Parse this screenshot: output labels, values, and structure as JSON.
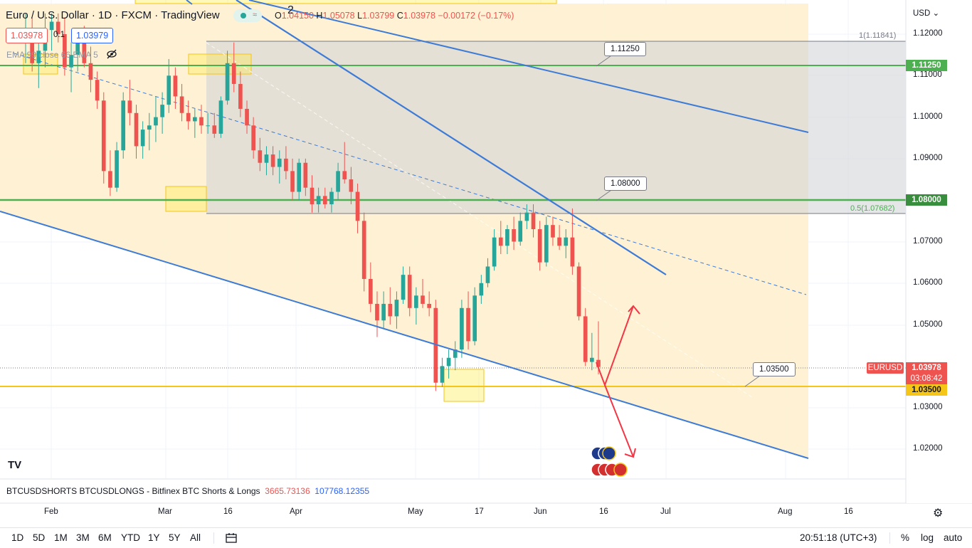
{
  "header": {
    "title": "Euro / U.S. Dollar · 1D · FXCM · TradingView",
    "marker": "2",
    "ohlc": {
      "o_label": "O",
      "o": "1.04150",
      "h_label": "H",
      "h": "1.05078",
      "l_label": "L",
      "l": "1.03799",
      "c_label": "C",
      "c": "1.03978",
      "change": "−0.00172 (−0.17%)"
    },
    "sell_price": "1.03978",
    "spread": "0.1",
    "buy_price": "1.03979",
    "indicator": "EMA 99 close 66 EMA 5"
  },
  "price_axis": {
    "currency": "USD",
    "ticks": [
      "1.12000",
      "1.11000",
      "1.10000",
      "1.09000",
      "1.07000",
      "1.06000",
      "1.05000",
      "1.03000",
      "1.02000"
    ],
    "tags": {
      "level_1": "1.11250",
      "level_2": "1.08000",
      "symbol": "EURUSD",
      "last": "1.03978",
      "countdown": "03:08:42",
      "level_3": "1.03500"
    },
    "fib_top": "1(1.11841)",
    "fib_mid": "0.5(1.07682)"
  },
  "annotations": [
    "1.11250",
    "1.08000",
    "1.03500"
  ],
  "time_axis": [
    "Feb",
    "Mar",
    "16",
    "Apr",
    "May",
    "17",
    "Jun",
    "16",
    "Jul",
    "Aug",
    "16"
  ],
  "indicator_pane": {
    "name": "BTCUSDSHORTS BTCUSDLONGS - Bitfinex BTC Shorts & Longs",
    "value_1": "3665.73136",
    "value_2": "107768.12355"
  },
  "toolbar": {
    "ranges": [
      "1D",
      "5D",
      "1M",
      "3M",
      "6M",
      "YTD",
      "1Y",
      "5Y",
      "All"
    ],
    "time": "20:51:18 (UTC+3)",
    "pct": "%",
    "log": "log",
    "auto": "auto"
  },
  "colors": {
    "up": "#26a69a",
    "down": "#ef5350",
    "channel_fill": "#fff0cc",
    "box_fill": "#dcdde0",
    "green_line": "#4caf50",
    "orange_line": "#f5c518",
    "trend_blue": "#3d7bd6",
    "arrow_red": "#f23645"
  },
  "chart_data": {
    "type": "candlestick",
    "symbol": "EURUSD",
    "timeframe": "1D",
    "ylim": [
      1.013,
      1.125
    ],
    "horizontal_levels": [
      1.1125,
      1.08,
      1.035
    ],
    "candles": [
      {
        "o": 1.118,
        "h": 1.125,
        "l": 1.113,
        "c": 1.121
      },
      {
        "o": 1.12,
        "h": 1.124,
        "l": 1.111,
        "c": 1.113
      },
      {
        "o": 1.113,
        "h": 1.118,
        "l": 1.107,
        "c": 1.116
      },
      {
        "o": 1.116,
        "h": 1.125,
        "l": 1.112,
        "c": 1.121
      },
      {
        "o": 1.121,
        "h": 1.125,
        "l": 1.116,
        "c": 1.123
      },
      {
        "o": 1.123,
        "h": 1.125,
        "l": 1.118,
        "c": 1.12
      },
      {
        "o": 1.12,
        "h": 1.124,
        "l": 1.11,
        "c": 1.112
      },
      {
        "o": 1.112,
        "h": 1.118,
        "l": 1.106,
        "c": 1.115
      },
      {
        "o": 1.115,
        "h": 1.121,
        "l": 1.111,
        "c": 1.118
      },
      {
        "o": 1.118,
        "h": 1.122,
        "l": 1.112,
        "c": 1.113
      },
      {
        "o": 1.113,
        "h": 1.117,
        "l": 1.106,
        "c": 1.109
      },
      {
        "o": 1.109,
        "h": 1.111,
        "l": 1.102,
        "c": 1.104
      },
      {
        "o": 1.104,
        "h": 1.106,
        "l": 1.084,
        "c": 1.087
      },
      {
        "o": 1.087,
        "h": 1.092,
        "l": 1.081,
        "c": 1.083
      },
      {
        "o": 1.083,
        "h": 1.094,
        "l": 1.082,
        "c": 1.092
      },
      {
        "o": 1.092,
        "h": 1.106,
        "l": 1.09,
        "c": 1.104
      },
      {
        "o": 1.104,
        "h": 1.109,
        "l": 1.098,
        "c": 1.101
      },
      {
        "o": 1.101,
        "h": 1.103,
        "l": 1.09,
        "c": 1.093
      },
      {
        "o": 1.093,
        "h": 1.099,
        "l": 1.09,
        "c": 1.097
      },
      {
        "o": 1.097,
        "h": 1.101,
        "l": 1.092,
        "c": 1.098
      },
      {
        "o": 1.098,
        "h": 1.105,
        "l": 1.094,
        "c": 1.1
      },
      {
        "o": 1.1,
        "h": 1.106,
        "l": 1.096,
        "c": 1.103
      },
      {
        "o": 1.103,
        "h": 1.114,
        "l": 1.101,
        "c": 1.11
      },
      {
        "o": 1.11,
        "h": 1.112,
        "l": 1.102,
        "c": 1.105
      },
      {
        "o": 1.105,
        "h": 1.108,
        "l": 1.099,
        "c": 1.101
      },
      {
        "o": 1.101,
        "h": 1.104,
        "l": 1.097,
        "c": 1.099
      },
      {
        "o": 1.099,
        "h": 1.102,
        "l": 1.095,
        "c": 1.1
      },
      {
        "o": 1.1,
        "h": 1.103,
        "l": 1.096,
        "c": 1.098
      },
      {
        "o": 1.098,
        "h": 1.101,
        "l": 1.096,
        "c": 1.098
      },
      {
        "o": 1.098,
        "h": 1.101,
        "l": 1.095,
        "c": 1.096
      },
      {
        "o": 1.096,
        "h": 1.105,
        "l": 1.095,
        "c": 1.104
      },
      {
        "o": 1.104,
        "h": 1.116,
        "l": 1.103,
        "c": 1.113
      },
      {
        "o": 1.113,
        "h": 1.118,
        "l": 1.106,
        "c": 1.108
      },
      {
        "o": 1.108,
        "h": 1.111,
        "l": 1.1,
        "c": 1.102
      },
      {
        "o": 1.102,
        "h": 1.104,
        "l": 1.096,
        "c": 1.098
      },
      {
        "o": 1.098,
        "h": 1.1,
        "l": 1.09,
        "c": 1.092
      },
      {
        "o": 1.092,
        "h": 1.095,
        "l": 1.087,
        "c": 1.089
      },
      {
        "o": 1.089,
        "h": 1.093,
        "l": 1.086,
        "c": 1.091
      },
      {
        "o": 1.091,
        "h": 1.093,
        "l": 1.086,
        "c": 1.088
      },
      {
        "o": 1.088,
        "h": 1.092,
        "l": 1.084,
        "c": 1.09
      },
      {
        "o": 1.09,
        "h": 1.093,
        "l": 1.085,
        "c": 1.087
      },
      {
        "o": 1.087,
        "h": 1.09,
        "l": 1.08,
        "c": 1.082
      },
      {
        "o": 1.082,
        "h": 1.09,
        "l": 1.08,
        "c": 1.089
      },
      {
        "o": 1.089,
        "h": 1.09,
        "l": 1.081,
        "c": 1.083
      },
      {
        "o": 1.083,
        "h": 1.086,
        "l": 1.077,
        "c": 1.079
      },
      {
        "o": 1.079,
        "h": 1.083,
        "l": 1.077,
        "c": 1.081
      },
      {
        "o": 1.081,
        "h": 1.083,
        "l": 1.078,
        "c": 1.079
      },
      {
        "o": 1.079,
        "h": 1.083,
        "l": 1.077,
        "c": 1.082
      },
      {
        "o": 1.082,
        "h": 1.089,
        "l": 1.08,
        "c": 1.087
      },
      {
        "o": 1.087,
        "h": 1.094,
        "l": 1.084,
        "c": 1.085
      },
      {
        "o": 1.085,
        "h": 1.088,
        "l": 1.079,
        "c": 1.082
      },
      {
        "o": 1.082,
        "h": 1.084,
        "l": 1.072,
        "c": 1.075
      },
      {
        "o": 1.075,
        "h": 1.077,
        "l": 1.058,
        "c": 1.061
      },
      {
        "o": 1.061,
        "h": 1.065,
        "l": 1.053,
        "c": 1.055
      },
      {
        "o": 1.055,
        "h": 1.058,
        "l": 1.047,
        "c": 1.051
      },
      {
        "o": 1.051,
        "h": 1.058,
        "l": 1.049,
        "c": 1.055
      },
      {
        "o": 1.055,
        "h": 1.059,
        "l": 1.05,
        "c": 1.052
      },
      {
        "o": 1.052,
        "h": 1.058,
        "l": 1.049,
        "c": 1.056
      },
      {
        "o": 1.056,
        "h": 1.064,
        "l": 1.055,
        "c": 1.062
      },
      {
        "o": 1.062,
        "h": 1.064,
        "l": 1.052,
        "c": 1.054
      },
      {
        "o": 1.054,
        "h": 1.059,
        "l": 1.05,
        "c": 1.057
      },
      {
        "o": 1.057,
        "h": 1.061,
        "l": 1.054,
        "c": 1.055
      },
      {
        "o": 1.055,
        "h": 1.058,
        "l": 1.052,
        "c": 1.054
      },
      {
        "o": 1.054,
        "h": 1.056,
        "l": 1.034,
        "c": 1.036
      },
      {
        "o": 1.036,
        "h": 1.042,
        "l": 1.035,
        "c": 1.04
      },
      {
        "o": 1.04,
        "h": 1.044,
        "l": 1.037,
        "c": 1.042
      },
      {
        "o": 1.042,
        "h": 1.046,
        "l": 1.039,
        "c": 1.044
      },
      {
        "o": 1.044,
        "h": 1.056,
        "l": 1.042,
        "c": 1.054
      },
      {
        "o": 1.054,
        "h": 1.058,
        "l": 1.044,
        "c": 1.046
      },
      {
        "o": 1.046,
        "h": 1.059,
        "l": 1.045,
        "c": 1.057
      },
      {
        "o": 1.057,
        "h": 1.062,
        "l": 1.055,
        "c": 1.06
      },
      {
        "o": 1.06,
        "h": 1.066,
        "l": 1.059,
        "c": 1.064
      },
      {
        "o": 1.064,
        "h": 1.073,
        "l": 1.063,
        "c": 1.071
      },
      {
        "o": 1.071,
        "h": 1.075,
        "l": 1.067,
        "c": 1.069
      },
      {
        "o": 1.069,
        "h": 1.074,
        "l": 1.067,
        "c": 1.073
      },
      {
        "o": 1.073,
        "h": 1.076,
        "l": 1.068,
        "c": 1.07
      },
      {
        "o": 1.07,
        "h": 1.077,
        "l": 1.069,
        "c": 1.075
      },
      {
        "o": 1.075,
        "h": 1.079,
        "l": 1.073,
        "c": 1.077
      },
      {
        "o": 1.077,
        "h": 1.079,
        "l": 1.071,
        "c": 1.073
      },
      {
        "o": 1.073,
        "h": 1.075,
        "l": 1.063,
        "c": 1.065
      },
      {
        "o": 1.065,
        "h": 1.076,
        "l": 1.064,
        "c": 1.074
      },
      {
        "o": 1.074,
        "h": 1.076,
        "l": 1.069,
        "c": 1.071
      },
      {
        "o": 1.071,
        "h": 1.074,
        "l": 1.068,
        "c": 1.069
      },
      {
        "o": 1.069,
        "h": 1.073,
        "l": 1.066,
        "c": 1.071
      },
      {
        "o": 1.071,
        "h": 1.078,
        "l": 1.062,
        "c": 1.064
      },
      {
        "o": 1.064,
        "h": 1.065,
        "l": 1.051,
        "c": 1.052
      },
      {
        "o": 1.052,
        "h": 1.054,
        "l": 1.04,
        "c": 1.041
      },
      {
        "o": 1.041,
        "h": 1.048,
        "l": 1.039,
        "c": 1.042
      },
      {
        "o": 1.0415,
        "h": 1.05078,
        "l": 1.03799,
        "c": 1.03978
      }
    ]
  }
}
